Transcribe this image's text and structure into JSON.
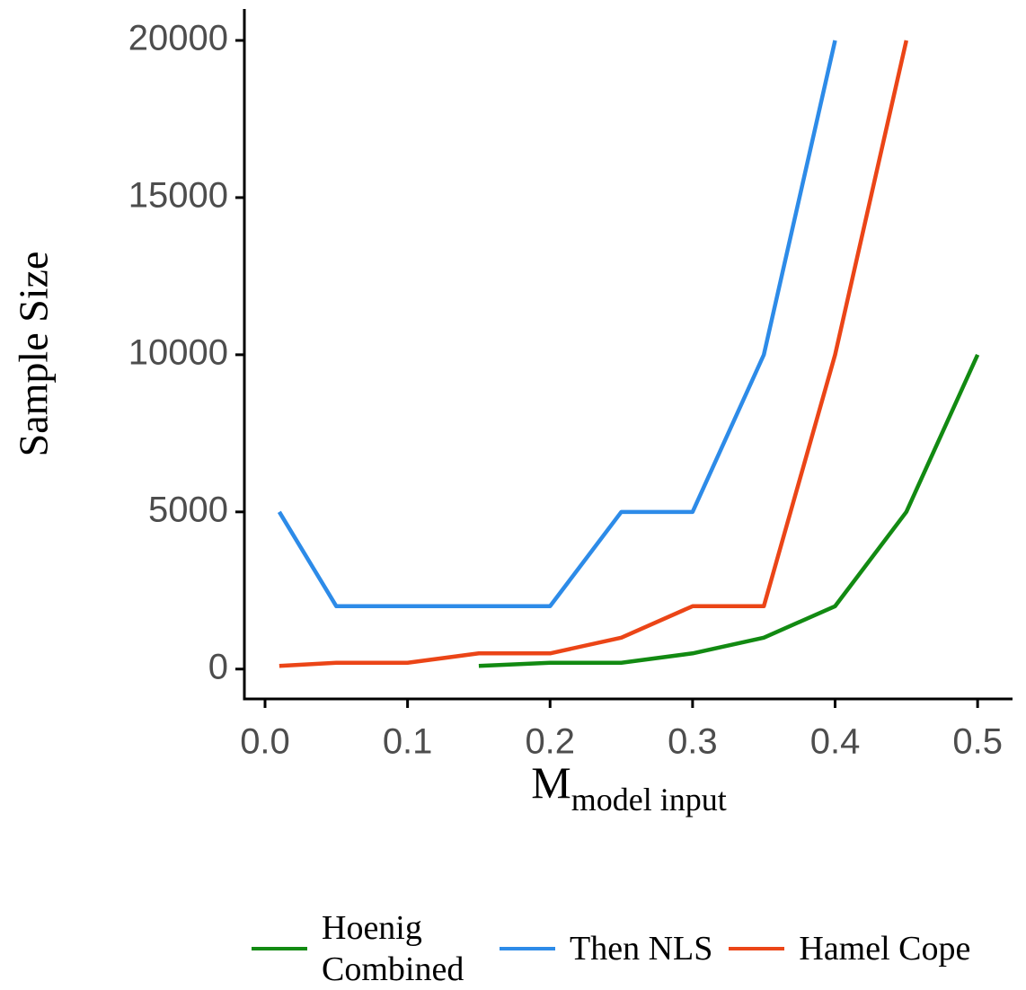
{
  "chart_data": {
    "type": "line",
    "x_label": "M",
    "x_label_sub": "model input",
    "y_label": "Sample Size",
    "x": [
      0.01,
      0.05,
      0.1,
      0.15,
      0.2,
      0.25,
      0.3,
      0.35,
      0.4,
      0.45,
      0.5
    ],
    "series": [
      {
        "name": "Hoenig Combined",
        "color": "#128a12",
        "values": [
          null,
          null,
          null,
          100,
          200,
          200,
          500,
          1000,
          2000,
          5000,
          10000
        ]
      },
      {
        "name": "Then NLS",
        "color": "#2d8be8",
        "values": [
          5000,
          2000,
          2000,
          2000,
          2000,
          5000,
          5000,
          10000,
          20000,
          null,
          null
        ]
      },
      {
        "name": "Hamel Cope",
        "color": "#eb4517",
        "values": [
          100,
          200,
          200,
          500,
          500,
          1000,
          2000,
          2000,
          10000,
          20000,
          null
        ]
      }
    ],
    "xlim": [
      -0.0145,
      0.5245
    ],
    "xticks": [
      {
        "value": 0,
        "label": "0.0"
      },
      0.1,
      0.2,
      0.3,
      0.4,
      0.5
    ],
    "ylim": [
      -950,
      21000
    ],
    "yticks": [
      0,
      5000,
      10000,
      15000,
      20000
    ],
    "grid": false,
    "legend": "bottom"
  }
}
